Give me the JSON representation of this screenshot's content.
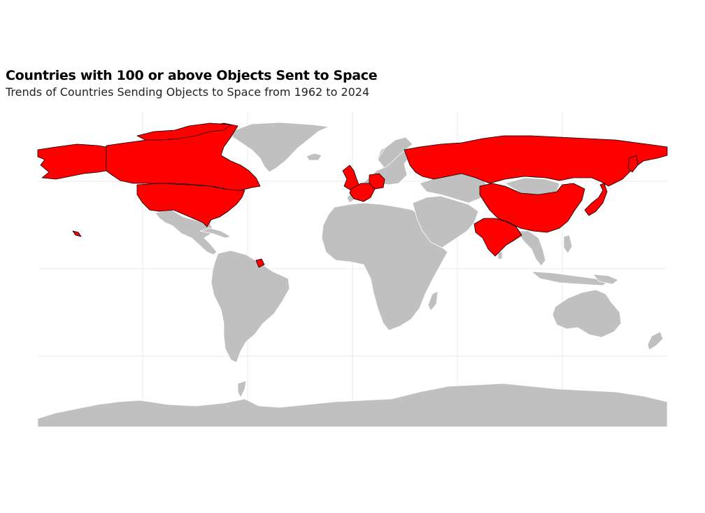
{
  "title": "Countries with 100 or above Objects Sent to Space",
  "subtitle": "Trends of Countries Sending Objects to Space from 1962 to 2024",
  "map": {
    "projection": "equirectangular",
    "background_land_color": "#c0c0c0",
    "highlight_color": "#ff0000",
    "border_color_default": "#ffffff",
    "border_color_highlight": "#000000",
    "grid_color": "#e8e8e8",
    "highlighted_countries": [
      "United States",
      "Canada",
      "Russia",
      "China",
      "India",
      "Japan",
      "United Kingdom",
      "France",
      "Germany",
      "Luxembourg",
      "French Guiana"
    ]
  }
}
